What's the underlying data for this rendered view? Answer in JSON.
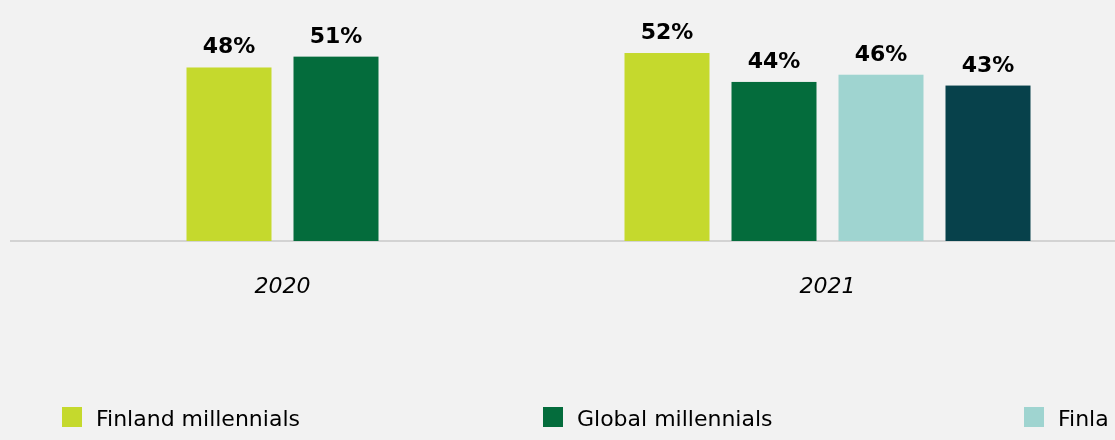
{
  "chart_data": {
    "type": "bar",
    "categories": [
      "2020",
      "2021"
    ],
    "series": [
      {
        "name": "Finland millennials",
        "color": "#c5d92d",
        "values": [
          48,
          52
        ],
        "value_labels": [
          "48%",
          "52%"
        ]
      },
      {
        "name": "Global millennials",
        "color": "#046c3c",
        "values": [
          51,
          44
        ],
        "value_labels": [
          "51%",
          "44%"
        ]
      },
      {
        "name": "Finla",
        "color": "#9fd4d0",
        "values": [
          null,
          46
        ],
        "value_labels": [
          null,
          "46%"
        ]
      },
      {
        "color": "#07414b",
        "values": [
          null,
          43
        ],
        "value_labels": [
          null,
          "43%"
        ]
      }
    ],
    "legend": "bottom"
  }
}
